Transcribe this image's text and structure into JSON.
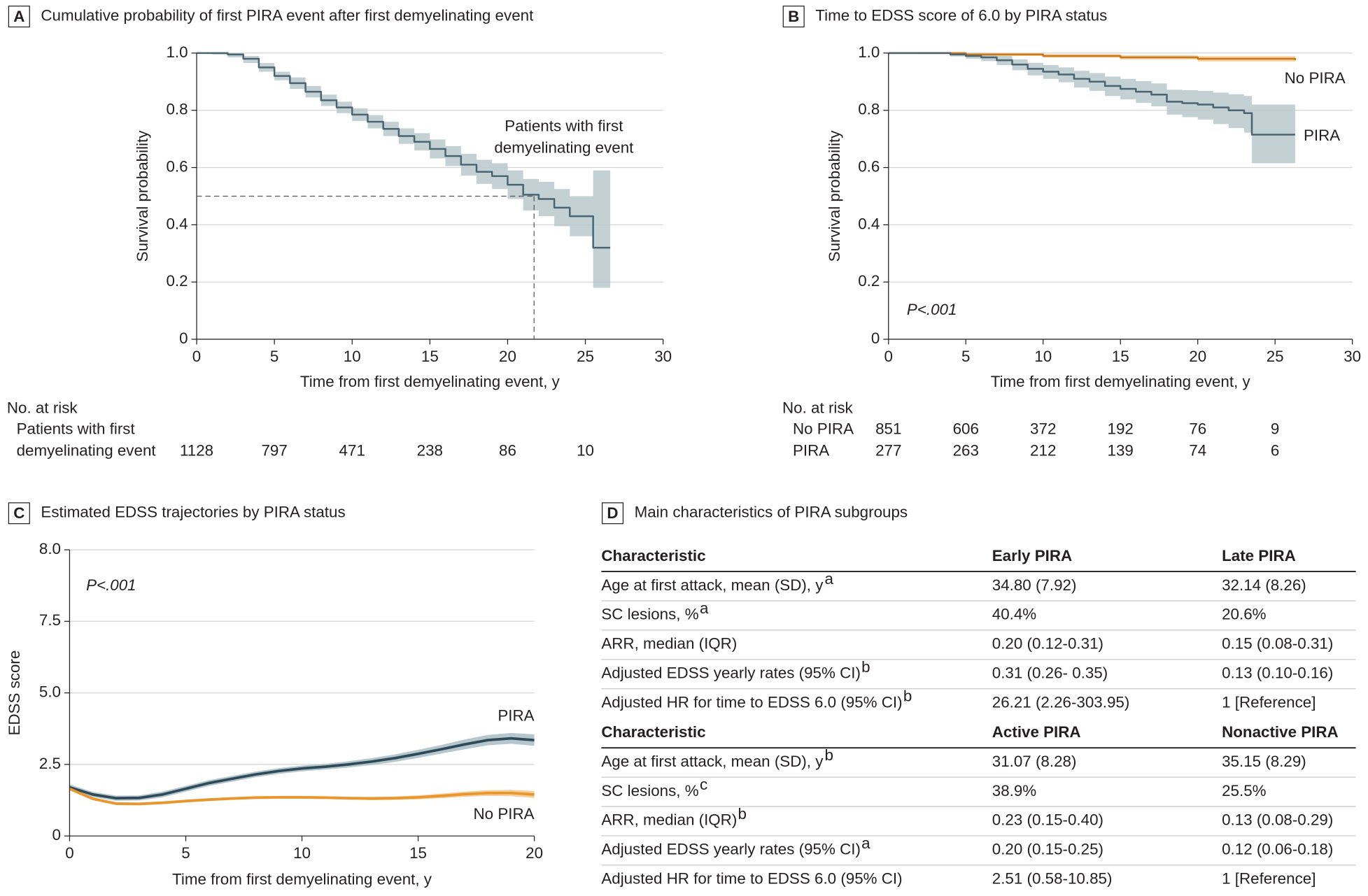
{
  "chart_data": [
    {
      "type": "line",
      "step": true,
      "panel": "A",
      "title": "Cumulative probability of first PIRA event after first demyelinating event",
      "x_label": "Time from first demyelinating event, y",
      "y_label": "Survival probability",
      "xlim": [
        0,
        30
      ],
      "ylim": [
        0,
        1
      ],
      "xticks": [
        0,
        5,
        10,
        15,
        20,
        25,
        30
      ],
      "yticks": [
        0,
        0.2,
        0.4,
        0.6,
        0.8,
        {
          "value": 1,
          "label": "1.0"
        }
      ],
      "grid": true,
      "annotation": [
        "Patients with first",
        "demyelinating event"
      ],
      "reference_lines": {
        "x": 21.7,
        "y": 0.5
      },
      "series": [
        {
          "name": "Patients with first demyelinating event",
          "color": "#4a6470",
          "band_color": "#b8c8cc",
          "x": [
            0,
            1,
            2,
            3,
            4,
            5,
            6,
            7,
            8,
            9,
            10,
            11,
            12,
            13,
            14,
            15,
            16,
            17,
            18,
            19,
            20,
            21,
            22,
            23,
            24,
            25.5,
            26.6
          ],
          "values": [
            1,
            1,
            0.995,
            0.98,
            0.95,
            0.92,
            0.895,
            0.865,
            0.835,
            0.81,
            0.785,
            0.76,
            0.735,
            0.71,
            0.69,
            0.665,
            0.64,
            0.61,
            0.585,
            0.57,
            0.54,
            0.505,
            0.49,
            0.46,
            0.43,
            0.32,
            0.32
          ],
          "lower": [
            1,
            0.995,
            0.985,
            0.965,
            0.935,
            0.905,
            0.875,
            0.845,
            0.815,
            0.79,
            0.763,
            0.737,
            0.71,
            0.683,
            0.66,
            0.632,
            0.605,
            0.572,
            0.543,
            0.525,
            0.49,
            0.45,
            0.43,
            0.395,
            0.36,
            0.18,
            0.18
          ],
          "upper": [
            1,
            1,
            1,
            0.99,
            0.965,
            0.935,
            0.915,
            0.885,
            0.855,
            0.83,
            0.807,
            0.783,
            0.76,
            0.737,
            0.72,
            0.698,
            0.675,
            0.648,
            0.627,
            0.615,
            0.59,
            0.56,
            0.55,
            0.525,
            0.5,
            0.59,
            0.59
          ]
        }
      ],
      "risk_table": {
        "title": "No. at risk",
        "rows": [
          {
            "label": [
              "Patients with first",
              "demyelinating event"
            ],
            "values": [
              1128,
              797,
              471,
              238,
              86,
              10
            ]
          }
        ]
      }
    },
    {
      "type": "line",
      "step": true,
      "panel": "B",
      "title": "Time to EDSS score of 6.0 by PIRA status",
      "x_label": "Time from first demyelinating event, y",
      "y_label": "Survival probability",
      "xlim": [
        0,
        30
      ],
      "ylim": [
        0,
        1
      ],
      "xticks": [
        0,
        5,
        10,
        15,
        20,
        25,
        30
      ],
      "yticks": [
        0,
        0.2,
        0.4,
        0.6,
        0.8,
        {
          "value": 1,
          "label": "1.0"
        }
      ],
      "grid": true,
      "annotation": "P<.001",
      "series": [
        {
          "name": "No PIRA",
          "color": "#c8781a",
          "band_color": "#f5c68a",
          "x": [
            0,
            5,
            10,
            15,
            20,
            26.3
          ],
          "values": [
            1,
            0.995,
            0.99,
            0.985,
            0.98,
            0.975
          ],
          "lower": [
            1,
            0.99,
            0.984,
            0.978,
            0.971,
            0.964
          ],
          "upper": [
            1,
            1,
            0.996,
            0.992,
            0.989,
            0.986
          ]
        },
        {
          "name": "PIRA",
          "color": "#4a6470",
          "band_color": "#b8c8cc",
          "x": [
            0,
            2,
            4,
            5,
            6,
            7,
            8,
            9,
            10,
            11,
            12,
            13,
            14,
            15,
            16,
            17,
            18,
            19,
            20,
            21,
            22,
            23,
            23.5,
            26.3
          ],
          "values": [
            1,
            1,
            0.995,
            0.99,
            0.985,
            0.975,
            0.96,
            0.945,
            0.935,
            0.925,
            0.91,
            0.9,
            0.885,
            0.875,
            0.865,
            0.855,
            0.83,
            0.825,
            0.82,
            0.81,
            0.8,
            0.79,
            0.715,
            0.715
          ],
          "lower": [
            1,
            0.997,
            0.988,
            0.98,
            0.972,
            0.958,
            0.94,
            0.922,
            0.91,
            0.898,
            0.88,
            0.868,
            0.85,
            0.838,
            0.826,
            0.814,
            0.785,
            0.776,
            0.768,
            0.752,
            0.738,
            0.722,
            0.615,
            0.615
          ],
          "upper": [
            1,
            1,
            1,
            0.998,
            0.996,
            0.99,
            0.978,
            0.966,
            0.958,
            0.95,
            0.938,
            0.93,
            0.918,
            0.91,
            0.902,
            0.894,
            0.872,
            0.87,
            0.868,
            0.862,
            0.856,
            0.85,
            0.82,
            0.82
          ]
        }
      ],
      "risk_table": {
        "title": "No. at risk",
        "rows": [
          {
            "label": [
              "No PIRA"
            ],
            "values": [
              851,
              606,
              372,
              192,
              76,
              9
            ]
          },
          {
            "label": [
              "PIRA"
            ],
            "values": [
              277,
              263,
              212,
              139,
              74,
              6
            ]
          }
        ]
      }
    },
    {
      "type": "line",
      "smooth": true,
      "panel": "C",
      "title": "Estimated EDSS trajectories by PIRA status",
      "x_label": "Time from first demyelinating event, y",
      "y_label": "EDSS score",
      "xlim": [
        0,
        20
      ],
      "ylim": [
        0,
        8
      ],
      "xticks": [
        0,
        5,
        10,
        15,
        20
      ],
      "even_tick_spacing": true,
      "yticks": [
        0,
        2.5,
        {
          "value": 5,
          "label": "5.0"
        },
        7.5,
        {
          "value": 8,
          "label": "8.0"
        }
      ],
      "grid": true,
      "annotation": "P<.001",
      "series": [
        {
          "name": "PIRA",
          "color": "#2f4a58",
          "band_color": "#a8bcc3",
          "x": [
            0,
            1,
            2,
            3,
            4,
            5,
            6,
            7,
            8,
            9,
            10,
            11,
            12,
            13,
            14,
            15,
            16,
            17,
            18,
            19,
            20
          ],
          "values": [
            1.7,
            1.45,
            1.32,
            1.33,
            1.45,
            1.65,
            1.85,
            2,
            2.15,
            2.27,
            2.36,
            2.42,
            2.5,
            2.6,
            2.72,
            2.87,
            3.03,
            3.2,
            3.35,
            3.41,
            3.35
          ],
          "lower": [
            1.6,
            1.36,
            1.23,
            1.24,
            1.35,
            1.55,
            1.75,
            1.9,
            2.05,
            2.17,
            2.26,
            2.32,
            2.39,
            2.48,
            2.59,
            2.73,
            2.88,
            3.03,
            3.17,
            3.22,
            3.15
          ],
          "upper": [
            1.8,
            1.54,
            1.41,
            1.42,
            1.55,
            1.75,
            1.95,
            2.1,
            2.25,
            2.37,
            2.46,
            2.52,
            2.61,
            2.72,
            2.85,
            3.01,
            3.18,
            3.37,
            3.53,
            3.6,
            3.55
          ]
        },
        {
          "name": "No PIRA",
          "color": "#e8962e",
          "band_color": "#f5c68a",
          "x": [
            0,
            1,
            2,
            3,
            4,
            5,
            6,
            7,
            8,
            9,
            10,
            11,
            12,
            13,
            14,
            15,
            16,
            17,
            18,
            19,
            20
          ],
          "values": [
            1.65,
            1.3,
            1.13,
            1.12,
            1.16,
            1.22,
            1.27,
            1.31,
            1.34,
            1.35,
            1.35,
            1.34,
            1.32,
            1.31,
            1.32,
            1.35,
            1.4,
            1.46,
            1.5,
            1.5,
            1.45
          ],
          "lower": [
            1.59,
            1.25,
            1.08,
            1.07,
            1.11,
            1.17,
            1.22,
            1.26,
            1.29,
            1.3,
            1.3,
            1.29,
            1.27,
            1.25,
            1.26,
            1.28,
            1.32,
            1.37,
            1.4,
            1.39,
            1.33
          ],
          "upper": [
            1.71,
            1.35,
            1.18,
            1.17,
            1.21,
            1.27,
            1.32,
            1.36,
            1.39,
            1.4,
            1.4,
            1.39,
            1.37,
            1.37,
            1.38,
            1.42,
            1.48,
            1.55,
            1.6,
            1.61,
            1.57
          ]
        }
      ]
    }
  ],
  "table": {
    "panel": "D",
    "title": "Main characteristics of PIRA subgroups",
    "sections": [
      {
        "header": [
          "Characteristic",
          "Early PIRA",
          "Late PIRA"
        ],
        "rows": [
          {
            "label": "Age at first attack, mean (SD), y",
            "footnote": "a",
            "values": [
              "34.80 (7.92)",
              "32.14 (8.26)"
            ]
          },
          {
            "label": "SC lesions, %",
            "footnote": "a",
            "values": [
              "40.4%",
              "20.6%"
            ]
          },
          {
            "label": "ARR, median (IQR)",
            "values": [
              "0.20 (0.12-0.31)",
              "0.15 (0.08-0.31)"
            ]
          },
          {
            "label": "Adjusted EDSS yearly rates (95% CI)",
            "footnote": "b",
            "values": [
              "0.31 (0.26- 0.35)",
              "0.13 (0.10-0.16)"
            ]
          },
          {
            "label": "Adjusted HR for time to EDSS 6.0 (95% CI)",
            "footnote": "b",
            "values": [
              "26.21 (2.26-303.95)",
              "1 [Reference]"
            ]
          }
        ]
      },
      {
        "header": [
          "Characteristic",
          "Active PIRA",
          "Nonactive PIRA"
        ],
        "rows": [
          {
            "label": "Age at first attack, mean (SD), y",
            "footnote": "b",
            "values": [
              "31.07 (8.28)",
              "35.15 (8.29)"
            ]
          },
          {
            "label": "SC lesions, %",
            "footnote": "c",
            "values": [
              "38.9%",
              "25.5%"
            ]
          },
          {
            "label": "ARR, median (IQR)",
            "footnote": "b",
            "values": [
              "0.23 (0.15-0.40)",
              "0.13 (0.08-0.29)"
            ]
          },
          {
            "label": "Adjusted EDSS yearly rates (95% CI)",
            "footnote": "a",
            "values": [
              "0.20 (0.15-0.25)",
              "0.12 (0.06-0.18)"
            ]
          },
          {
            "label": "Adjusted HR for time to EDSS 6.0 (95% CI)",
            "values": [
              "2.51 (0.58-10.85)",
              "1 [Reference]"
            ]
          }
        ]
      }
    ]
  }
}
